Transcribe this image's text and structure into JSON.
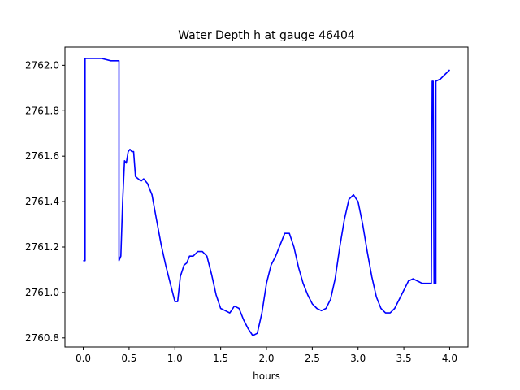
{
  "chart_data": {
    "type": "line",
    "title": "Water Depth h at gauge 46404",
    "xlabel": "hours",
    "ylabel": "",
    "xlim": [
      -0.2,
      4.2
    ],
    "ylim": [
      2760.76,
      2762.08
    ],
    "x_ticks": [
      0.0,
      0.5,
      1.0,
      1.5,
      2.0,
      2.5,
      3.0,
      3.5,
      4.0
    ],
    "x_tick_labels": [
      "0.0",
      "0.5",
      "1.0",
      "1.5",
      "2.0",
      "2.5",
      "3.0",
      "3.5",
      "4.0"
    ],
    "y_ticks": [
      2760.8,
      2761.0,
      2761.2,
      2761.4,
      2761.6,
      2761.8,
      2762.0
    ],
    "y_tick_labels": [
      "2760.8",
      "2761.0",
      "2761.2",
      "2761.4",
      "2761.6",
      "2761.8",
      "2762.0"
    ],
    "grid": false,
    "legend": "none",
    "series": [
      {
        "color": "#0000ff",
        "points": [
          [
            0.0,
            2761.14
          ],
          [
            0.02,
            2761.14
          ],
          [
            0.02,
            2762.03
          ],
          [
            0.1,
            2762.03
          ],
          [
            0.2,
            2762.03
          ],
          [
            0.3,
            2762.02
          ],
          [
            0.34,
            2762.02
          ],
          [
            0.37,
            2762.02
          ],
          [
            0.39,
            2762.02
          ],
          [
            0.39,
            2761.14
          ],
          [
            0.41,
            2761.16
          ],
          [
            0.43,
            2761.4
          ],
          [
            0.45,
            2761.58
          ],
          [
            0.47,
            2761.57
          ],
          [
            0.49,
            2761.62
          ],
          [
            0.51,
            2761.63
          ],
          [
            0.53,
            2761.62
          ],
          [
            0.55,
            2761.62
          ],
          [
            0.57,
            2761.51
          ],
          [
            0.6,
            2761.5
          ],
          [
            0.63,
            2761.49
          ],
          [
            0.66,
            2761.5
          ],
          [
            0.7,
            2761.48
          ],
          [
            0.75,
            2761.43
          ],
          [
            0.8,
            2761.32
          ],
          [
            0.85,
            2761.21
          ],
          [
            0.9,
            2761.12
          ],
          [
            0.95,
            2761.04
          ],
          [
            1.0,
            2760.96
          ],
          [
            1.03,
            2760.96
          ],
          [
            1.06,
            2761.07
          ],
          [
            1.1,
            2761.12
          ],
          [
            1.13,
            2761.13
          ],
          [
            1.16,
            2761.16
          ],
          [
            1.2,
            2761.16
          ],
          [
            1.25,
            2761.18
          ],
          [
            1.3,
            2761.18
          ],
          [
            1.35,
            2761.16
          ],
          [
            1.4,
            2761.08
          ],
          [
            1.45,
            2760.99
          ],
          [
            1.5,
            2760.93
          ],
          [
            1.55,
            2760.92
          ],
          [
            1.6,
            2760.91
          ],
          [
            1.65,
            2760.94
          ],
          [
            1.7,
            2760.93
          ],
          [
            1.75,
            2760.88
          ],
          [
            1.8,
            2760.84
          ],
          [
            1.85,
            2760.81
          ],
          [
            1.9,
            2760.82
          ],
          [
            1.95,
            2760.91
          ],
          [
            2.0,
            2761.04
          ],
          [
            2.05,
            2761.12
          ],
          [
            2.1,
            2761.16
          ],
          [
            2.15,
            2761.21
          ],
          [
            2.2,
            2761.26
          ],
          [
            2.25,
            2761.26
          ],
          [
            2.3,
            2761.2
          ],
          [
            2.35,
            2761.11
          ],
          [
            2.4,
            2761.04
          ],
          [
            2.45,
            2760.99
          ],
          [
            2.5,
            2760.95
          ],
          [
            2.55,
            2760.93
          ],
          [
            2.6,
            2760.92
          ],
          [
            2.65,
            2760.93
          ],
          [
            2.7,
            2760.97
          ],
          [
            2.75,
            2761.06
          ],
          [
            2.8,
            2761.2
          ],
          [
            2.85,
            2761.32
          ],
          [
            2.9,
            2761.41
          ],
          [
            2.95,
            2761.43
          ],
          [
            3.0,
            2761.4
          ],
          [
            3.05,
            2761.3
          ],
          [
            3.1,
            2761.18
          ],
          [
            3.15,
            2761.07
          ],
          [
            3.2,
            2760.98
          ],
          [
            3.25,
            2760.93
          ],
          [
            3.3,
            2760.91
          ],
          [
            3.35,
            2760.91
          ],
          [
            3.4,
            2760.93
          ],
          [
            3.45,
            2760.97
          ],
          [
            3.5,
            2761.01
          ],
          [
            3.55,
            2761.05
          ],
          [
            3.6,
            2761.06
          ],
          [
            3.65,
            2761.05
          ],
          [
            3.7,
            2761.04
          ],
          [
            3.75,
            2761.04
          ],
          [
            3.8,
            2761.04
          ],
          [
            3.81,
            2761.93
          ],
          [
            3.82,
            2761.93
          ],
          [
            3.83,
            2761.04
          ],
          [
            3.85,
            2761.04
          ],
          [
            3.85,
            2761.93
          ],
          [
            3.9,
            2761.94
          ],
          [
            3.95,
            2761.96
          ],
          [
            4.0,
            2761.98
          ]
        ]
      }
    ]
  }
}
